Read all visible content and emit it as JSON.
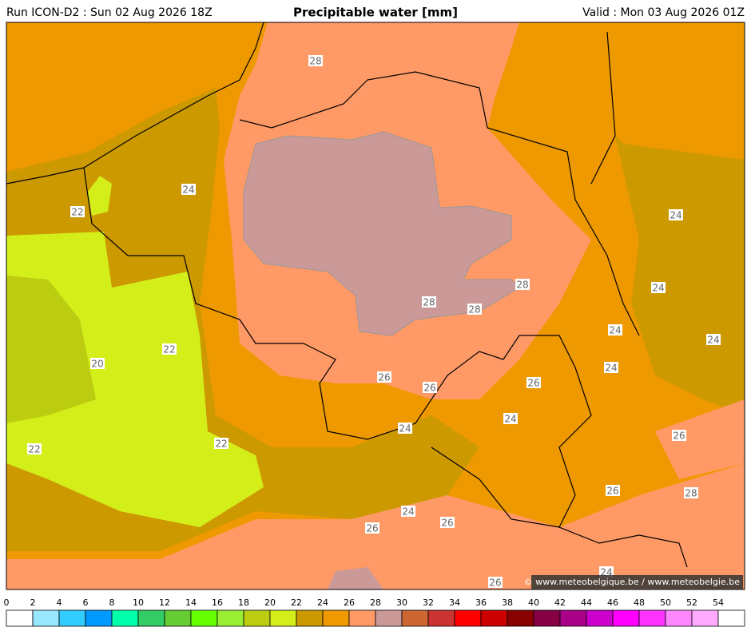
{
  "header": {
    "run": "Run ICON-D2 : Sun 02 Aug 2026 18Z",
    "title": "Precipitable water [mm]",
    "valid": "Valid : Mon 03 Aug 2026 01Z"
  },
  "contour_labels": [
    28,
    24,
    22,
    24,
    24,
    28,
    28,
    28,
    24,
    24,
    22,
    20,
    24,
    26,
    26,
    26,
    24,
    24,
    26,
    22,
    22,
    26,
    28,
    24,
    26,
    26,
    24,
    26
  ],
  "colorbar": {
    "ticks": [
      0,
      2,
      4,
      6,
      8,
      10,
      12,
      14,
      16,
      18,
      20,
      22,
      24,
      26,
      28,
      30,
      32,
      34,
      36,
      38,
      40,
      42,
      44,
      46,
      48,
      50,
      52,
      54
    ],
    "colors": [
      "#ffffff",
      "#99e6ff",
      "#33ccff",
      "#0099ff",
      "#00ffaa",
      "#33cc66",
      "#66cc33",
      "#66ff00",
      "#99ee33",
      "#bbcc11",
      "#d4ee1a",
      "#cc9900",
      "#ee9900",
      "#ff9966",
      "#cc9999",
      "#cc6633",
      "#cc3333",
      "#ff0000",
      "#cc0000",
      "#880000",
      "#880044",
      "#aa0088",
      "#cc00cc",
      "#ff00ff",
      "#ff33ff",
      "#ff88ff",
      "#ffaaff",
      "#ffffff"
    ]
  },
  "credit": "© www.meteobelgique.be / www.meteobelgie.be"
}
